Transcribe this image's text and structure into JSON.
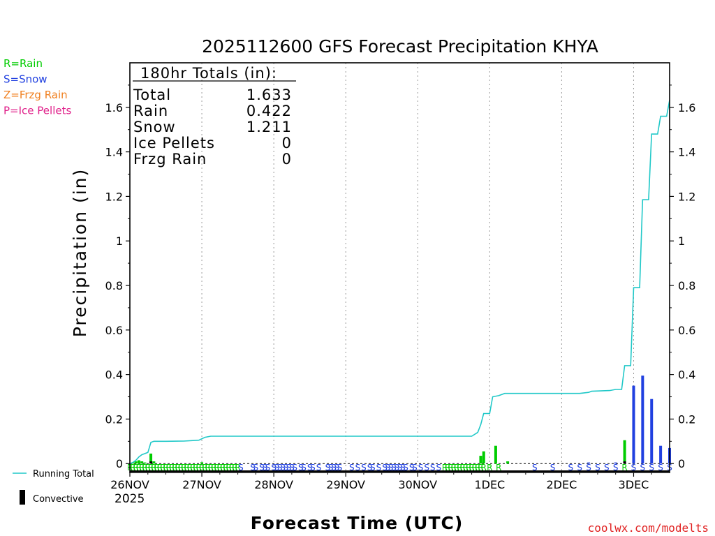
{
  "chart_data": {
    "type": "bar",
    "title": "2025112600 GFS Forecast Precipitation KHYA",
    "xlabel": "Forecast Time (UTC)",
    "ylabel": "Precipitation (in)",
    "ylim": [
      -0.04,
      1.8
    ],
    "xlim_hours": [
      0,
      180
    ],
    "y_ticks": [
      "0",
      "0.2",
      "0.4",
      "0.6",
      "0.8",
      "1",
      "1.2",
      "1.4",
      "1.6"
    ],
    "y_tick_values": [
      0,
      0.2,
      0.4,
      0.6,
      0.8,
      1.0,
      1.2,
      1.4,
      1.6
    ],
    "x_ticks": [
      {
        "label": "26NOV",
        "hour": 0
      },
      {
        "label": "27NOV",
        "hour": 24
      },
      {
        "label": "28NOV",
        "hour": 48
      },
      {
        "label": "29NOV",
        "hour": 72
      },
      {
        "label": "30NOV",
        "hour": 96
      },
      {
        "label": "1DEC",
        "hour": 120
      },
      {
        "label": "2DEC",
        "hour": 144
      },
      {
        "label": "3DEC",
        "hour": 168
      }
    ],
    "year_label": "2025",
    "totals_box": {
      "header": "180hr Totals (in):",
      "rows": [
        {
          "label": "Total",
          "value": "1.633"
        },
        {
          "label": "Rain",
          "value": "0.422"
        },
        {
          "label": "Snow",
          "value": "1.211"
        },
        {
          "label": "Ice Pellets",
          "value": "0"
        },
        {
          "label": "Frzg Rain",
          "value": "0"
        }
      ]
    },
    "type_legend": [
      {
        "text": "R=Rain",
        "color": "#00cc00"
      },
      {
        "text": "S=Snow",
        "color": "#2040e0"
      },
      {
        "text": "Z=Frzg Rain",
        "color": "#f08020"
      },
      {
        "text": "P=Ice Pellets",
        "color": "#e0208a"
      }
    ],
    "series_legend": [
      {
        "name": "Running Total",
        "color": "#20c8c8"
      },
      {
        "name": "Convective",
        "color": "#000000"
      }
    ],
    "colors": {
      "rain": "#00cc00",
      "snow": "#2040e0",
      "running_total": "#20c8c8",
      "convective": "#000000"
    },
    "bars": [
      {
        "hour": 1,
        "value": 0.005,
        "type": "rain"
      },
      {
        "hour": 2,
        "value": 0.01,
        "type": "rain"
      },
      {
        "hour": 3,
        "value": 0.015,
        "type": "rain"
      },
      {
        "hour": 4,
        "value": 0.01,
        "type": "rain"
      },
      {
        "hour": 5,
        "value": 0.005,
        "type": "rain"
      },
      {
        "hour": 7,
        "value": 0.045,
        "type": "rain"
      },
      {
        "hour": 8,
        "value": 0.01,
        "type": "rain"
      },
      {
        "hour": 24,
        "value": 0.006,
        "type": "rain"
      },
      {
        "hour": 117,
        "value": 0.035,
        "type": "rain"
      },
      {
        "hour": 118,
        "value": 0.055,
        "type": "rain"
      },
      {
        "hour": 122,
        "value": 0.08,
        "type": "rain"
      },
      {
        "hour": 126,
        "value": 0.01,
        "type": "rain"
      },
      {
        "hour": 153,
        "value": 0.005,
        "type": "snow"
      },
      {
        "hour": 162,
        "value": 0.005,
        "type": "snow"
      },
      {
        "hour": 165,
        "value": 0.105,
        "type": "rain"
      },
      {
        "hour": 168,
        "value": 0.35,
        "type": "snow"
      },
      {
        "hour": 171,
        "value": 0.395,
        "type": "snow"
      },
      {
        "hour": 174,
        "value": 0.29,
        "type": "snow"
      },
      {
        "hour": 177,
        "value": 0.08,
        "type": "snow"
      },
      {
        "hour": 180,
        "value": 0.07,
        "type": "snow"
      }
    ],
    "convective_bars": [
      {
        "hour": 7,
        "value": 0.01
      },
      {
        "hour": 165,
        "value": 0.01
      }
    ],
    "running_total": [
      [
        0,
        0.0
      ],
      [
        1,
        0.005
      ],
      [
        2,
        0.015
      ],
      [
        3,
        0.03
      ],
      [
        4,
        0.04
      ],
      [
        5,
        0.045
      ],
      [
        6,
        0.05
      ],
      [
        7,
        0.095
      ],
      [
        8,
        0.1
      ],
      [
        12,
        0.1
      ],
      [
        18,
        0.101
      ],
      [
        23,
        0.105
      ],
      [
        25,
        0.118
      ],
      [
        27,
        0.123
      ],
      [
        36,
        0.123
      ],
      [
        60,
        0.123
      ],
      [
        96,
        0.123
      ],
      [
        114,
        0.123
      ],
      [
        116,
        0.14
      ],
      [
        117,
        0.175
      ],
      [
        118,
        0.225
      ],
      [
        120,
        0.225
      ],
      [
        121,
        0.3
      ],
      [
        123,
        0.305
      ],
      [
        125,
        0.315
      ],
      [
        140,
        0.315
      ],
      [
        150,
        0.315
      ],
      [
        153,
        0.32
      ],
      [
        154,
        0.325
      ],
      [
        160,
        0.328
      ],
      [
        162,
        0.333
      ],
      [
        164,
        0.333
      ],
      [
        165,
        0.44
      ],
      [
        167,
        0.44
      ],
      [
        168,
        0.79
      ],
      [
        170,
        0.79
      ],
      [
        171,
        1.185
      ],
      [
        173,
        1.185
      ],
      [
        174,
        1.48
      ],
      [
        176,
        1.48
      ],
      [
        177,
        1.56
      ],
      [
        179,
        1.56
      ],
      [
        180,
        1.633
      ]
    ],
    "type_strip": [
      {
        "hour": 0,
        "text": "R"
      },
      {
        "hour": 1,
        "text": "R"
      },
      {
        "hour": 2,
        "text": "R"
      },
      {
        "hour": 3,
        "text": "R"
      },
      {
        "hour": 4,
        "text": "R"
      },
      {
        "hour": 5,
        "text": "R"
      },
      {
        "hour": 6,
        "text": "R"
      },
      {
        "hour": 7,
        "text": "R"
      },
      {
        "hour": 8,
        "text": "R"
      },
      {
        "hour": 9,
        "text": "R"
      },
      {
        "hour": 10,
        "text": "R"
      },
      {
        "hour": 11,
        "text": "R"
      },
      {
        "hour": 12,
        "text": "R"
      },
      {
        "hour": 13,
        "text": "R"
      },
      {
        "hour": 14,
        "text": "R"
      },
      {
        "hour": 15,
        "text": "R"
      },
      {
        "hour": 16,
        "text": "R"
      },
      {
        "hour": 17,
        "text": "R"
      },
      {
        "hour": 18,
        "text": "R"
      },
      {
        "hour": 19,
        "text": "R"
      },
      {
        "hour": 20,
        "text": "R"
      },
      {
        "hour": 21,
        "text": "R"
      },
      {
        "hour": 22,
        "text": "R"
      },
      {
        "hour": 23,
        "text": "R"
      },
      {
        "hour": 24,
        "text": "R"
      },
      {
        "hour": 25,
        "text": "R"
      },
      {
        "hour": 26,
        "text": "R"
      },
      {
        "hour": 27,
        "text": "R"
      },
      {
        "hour": 28,
        "text": "R"
      },
      {
        "hour": 29,
        "text": "R"
      },
      {
        "hour": 30,
        "text": "R"
      },
      {
        "hour": 31,
        "text": "R"
      },
      {
        "hour": 32,
        "text": "R"
      },
      {
        "hour": 33,
        "text": "R"
      },
      {
        "hour": 34,
        "text": "R"
      },
      {
        "hour": 35,
        "text": "R"
      },
      {
        "hour": 36,
        "text": "R"
      },
      {
        "hour": 37,
        "text": "S"
      },
      {
        "hour": 41,
        "text": "S"
      },
      {
        "hour": 42,
        "text": "S"
      },
      {
        "hour": 44,
        "text": "S"
      },
      {
        "hour": 45,
        "text": "S"
      },
      {
        "hour": 46,
        "text": "S"
      },
      {
        "hour": 48,
        "text": "S"
      },
      {
        "hour": 49,
        "text": "S"
      },
      {
        "hour": 50,
        "text": "S"
      },
      {
        "hour": 51,
        "text": "S"
      },
      {
        "hour": 52,
        "text": "S"
      },
      {
        "hour": 53,
        "text": "S"
      },
      {
        "hour": 54,
        "text": "S"
      },
      {
        "hour": 55,
        "text": "S"
      },
      {
        "hour": 57,
        "text": "S"
      },
      {
        "hour": 58,
        "text": "S"
      },
      {
        "hour": 60,
        "text": "S"
      },
      {
        "hour": 61,
        "text": "S"
      },
      {
        "hour": 63,
        "text": "S"
      },
      {
        "hour": 66,
        "text": "S"
      },
      {
        "hour": 67,
        "text": "S"
      },
      {
        "hour": 68,
        "text": "S"
      },
      {
        "hour": 69,
        "text": "S"
      },
      {
        "hour": 70,
        "text": "S"
      },
      {
        "hour": 74,
        "text": "S"
      },
      {
        "hour": 76,
        "text": "S"
      },
      {
        "hour": 78,
        "text": "S"
      },
      {
        "hour": 80,
        "text": "S"
      },
      {
        "hour": 81,
        "text": "S"
      },
      {
        "hour": 83,
        "text": "S"
      },
      {
        "hour": 85,
        "text": "S"
      },
      {
        "hour": 86,
        "text": "S"
      },
      {
        "hour": 87,
        "text": "S"
      },
      {
        "hour": 88,
        "text": "S"
      },
      {
        "hour": 89,
        "text": "S"
      },
      {
        "hour": 90,
        "text": "S"
      },
      {
        "hour": 91,
        "text": "S"
      },
      {
        "hour": 92,
        "text": "S"
      },
      {
        "hour": 94,
        "text": "S"
      },
      {
        "hour": 95,
        "text": "S"
      },
      {
        "hour": 97,
        "text": "S"
      },
      {
        "hour": 99,
        "text": "S"
      },
      {
        "hour": 101,
        "text": "S"
      },
      {
        "hour": 103,
        "text": "S"
      },
      {
        "hour": 105,
        "text": "R"
      },
      {
        "hour": 106,
        "text": "R"
      },
      {
        "hour": 107,
        "text": "R"
      },
      {
        "hour": 108,
        "text": "R"
      },
      {
        "hour": 109,
        "text": "R"
      },
      {
        "hour": 110,
        "text": "R"
      },
      {
        "hour": 111,
        "text": "R"
      },
      {
        "hour": 112,
        "text": "R"
      },
      {
        "hour": 113,
        "text": "R"
      },
      {
        "hour": 114,
        "text": "R"
      },
      {
        "hour": 115,
        "text": "R"
      },
      {
        "hour": 116,
        "text": "R"
      },
      {
        "hour": 117,
        "text": "R"
      },
      {
        "hour": 118,
        "text": "R"
      },
      {
        "hour": 120,
        "text": "R"
      },
      {
        "hour": 123,
        "text": "R"
      },
      {
        "hour": 135,
        "text": "S"
      },
      {
        "hour": 141,
        "text": "S"
      },
      {
        "hour": 147,
        "text": "S"
      },
      {
        "hour": 150,
        "text": "S"
      },
      {
        "hour": 153,
        "text": "S"
      },
      {
        "hour": 156,
        "text": "S"
      },
      {
        "hour": 159,
        "text": "S"
      },
      {
        "hour": 162,
        "text": "S"
      },
      {
        "hour": 165,
        "text": "R"
      },
      {
        "hour": 168,
        "text": "S"
      },
      {
        "hour": 171,
        "text": "S"
      },
      {
        "hour": 174,
        "text": "S"
      },
      {
        "hour": 177,
        "text": "S"
      },
      {
        "hour": 180,
        "text": "S"
      }
    ],
    "credit": "coolwx.com/modelts"
  }
}
